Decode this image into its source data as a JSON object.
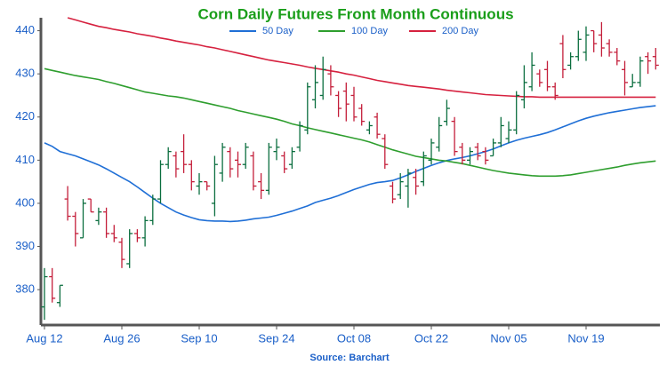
{
  "chart_data": {
    "type": "ohlc",
    "title": "Corn Daily Futures Front Month Continuous",
    "source": "Source: Barchart",
    "categories": [
      "Aug 12",
      null,
      null,
      null,
      null,
      null,
      null,
      null,
      null,
      null,
      "Aug 26",
      null,
      null,
      null,
      null,
      null,
      null,
      null,
      null,
      null,
      "Sep 10",
      null,
      null,
      null,
      null,
      null,
      null,
      null,
      null,
      null,
      "Sep 24",
      null,
      null,
      null,
      null,
      null,
      null,
      null,
      null,
      null,
      "Oct 08",
      null,
      null,
      null,
      null,
      null,
      null,
      null,
      null,
      null,
      "Oct 22",
      null,
      null,
      null,
      null,
      null,
      null,
      null,
      null,
      null,
      "Nov 05",
      null,
      null,
      null,
      null,
      null,
      null,
      null,
      null,
      null,
      "Nov 19",
      null,
      null,
      null,
      null,
      null,
      null,
      null,
      null,
      null
    ],
    "open": [
      376,
      383,
      377,
      401,
      397,
      392,
      401,
      396,
      398,
      393,
      391,
      386,
      393,
      392,
      396,
      401,
      409,
      411,
      412,
      409,
      404,
      405,
      400,
      407,
      412,
      410,
      409,
      411,
      405,
      403,
      412,
      411,
      409,
      413,
      417,
      424,
      425,
      430,
      425,
      426,
      425,
      422,
      417,
      420,
      415,
      404,
      402,
      404,
      406,
      405,
      410,
      413,
      419,
      419,
      413,
      410,
      413,
      412,
      411,
      414,
      415,
      417,
      424,
      427,
      430,
      431,
      427,
      437,
      432,
      434,
      435,
      440,
      439,
      437,
      435,
      431,
      427,
      428,
      434,
      434
    ],
    "high": [
      385,
      385,
      381,
      404,
      398,
      401,
      401,
      399,
      399,
      395,
      392,
      394,
      394,
      397,
      402,
      410,
      413,
      412,
      416,
      410,
      407,
      405,
      411,
      414,
      413,
      412,
      414,
      412,
      407,
      414,
      415,
      412,
      413,
      419,
      428,
      432,
      434,
      432,
      426,
      428,
      427,
      423,
      419,
      421,
      416,
      405,
      407,
      408,
      408,
      412,
      415,
      420,
      424,
      420,
      414,
      413,
      414,
      413,
      415,
      420,
      419,
      426,
      432,
      435,
      431,
      433,
      428,
      439,
      435,
      440,
      441,
      440,
      442,
      438,
      436,
      433,
      430,
      434,
      435,
      436
    ],
    "low": [
      373,
      377,
      376,
      396,
      390,
      392,
      398,
      395,
      392,
      391,
      385,
      385,
      391,
      390,
      395,
      400,
      408,
      406,
      407,
      403,
      402,
      403,
      397,
      405,
      406,
      406,
      408,
      403,
      401,
      402,
      410,
      407,
      408,
      412,
      416,
      422,
      424,
      425,
      420,
      419,
      419,
      418,
      416,
      415,
      408,
      400,
      401,
      399,
      402,
      404,
      409,
      412,
      418,
      411,
      409,
      409,
      410,
      409,
      411,
      413,
      414,
      416,
      422,
      426,
      427,
      426,
      424,
      429,
      431,
      433,
      433,
      435,
      434,
      434,
      432,
      425,
      427,
      427,
      430,
      431
    ],
    "close": [
      383,
      378,
      381,
      397,
      393,
      400,
      398,
      398,
      393,
      392,
      387,
      393,
      392,
      396,
      401,
      409,
      412,
      408,
      409,
      405,
      405,
      404,
      409,
      413,
      408,
      409,
      413,
      404,
      403,
      413,
      413,
      408,
      412,
      418,
      427,
      428,
      431,
      427,
      422,
      423,
      420,
      419,
      418,
      416,
      409,
      401,
      405,
      407,
      404,
      411,
      414,
      418,
      422,
      412,
      410,
      412,
      411,
      410,
      414,
      418,
      417,
      425,
      428,
      432,
      428,
      427,
      425,
      431,
      434,
      438,
      439,
      437,
      436,
      435,
      433,
      428,
      428,
      433,
      433,
      432
    ],
    "up_color": "#0b6e3f",
    "down_color": "#c41e3a",
    "series": [
      {
        "name": "50 Day",
        "color": "#1f6fd6",
        "values": [
          414,
          413.2,
          412,
          411.5,
          411,
          410.3,
          409.6,
          408.9,
          408,
          407,
          406,
          405,
          403.8,
          402.5,
          401.2,
          400,
          399,
          398,
          397.3,
          396.7,
          396.2,
          396,
          395.9,
          395.9,
          395.8,
          395.9,
          396.1,
          396.4,
          396.6,
          396.8,
          397.2,
          397.7,
          398.2,
          398.8,
          399.4,
          400.2,
          400.7,
          401.2,
          401.8,
          402.5,
          403.2,
          403.8,
          404.4,
          404.8,
          405,
          405.3,
          405.9,
          406.6,
          407.4,
          408.1,
          408.8,
          409.4,
          409.9,
          410.3,
          410.6,
          411,
          411.5,
          412,
          412.6,
          413.3,
          414,
          414.6,
          415.1,
          415.5,
          415.9,
          416.4,
          417,
          417.7,
          418.4,
          419.1,
          419.7,
          420.2,
          420.6,
          421,
          421.3,
          421.6,
          421.9,
          422.2,
          422.4,
          422.6
        ]
      },
      {
        "name": "100 Day",
        "color": "#2e9e2e",
        "values": [
          431.2,
          430.8,
          430.4,
          430,
          429.6,
          429.3,
          429,
          428.7,
          428.2,
          427.8,
          427.3,
          426.8,
          426.3,
          425.8,
          425.5,
          425.2,
          424.9,
          424.7,
          424.4,
          424,
          423.6,
          423.2,
          422.8,
          422.4,
          422,
          421.5,
          421.1,
          420.7,
          420.3,
          419.9,
          419.5,
          419,
          418.4,
          418,
          417.5,
          417.1,
          416.7,
          416.3,
          415.9,
          415.5,
          415.1,
          414.7,
          414.2,
          413.6,
          413,
          412.4,
          411.9,
          411.4,
          410.9,
          410.6,
          410.3,
          410,
          409.8,
          409.5,
          409.2,
          408.8,
          408.4,
          408,
          407.6,
          407.3,
          407,
          406.8,
          406.6,
          406.4,
          406.3,
          406.3,
          406.3,
          406.4,
          406.6,
          406.9,
          407.2,
          407.5,
          407.8,
          408.1,
          408.4,
          408.8,
          409.1,
          409.4,
          409.6,
          409.8
        ]
      },
      {
        "name": "200 Day",
        "color": "#d6213f",
        "values": [
          null,
          null,
          null,
          443,
          442.5,
          442,
          441.5,
          441,
          440.7,
          440.3,
          440,
          439.7,
          439.3,
          439,
          438.7,
          438.3,
          438,
          437.6,
          437.3,
          437,
          436.7,
          436.3,
          436,
          435.6,
          435.2,
          434.8,
          434.4,
          434,
          433.6,
          433.2,
          432.9,
          432.6,
          432.3,
          432,
          431.6,
          431.3,
          431,
          430.7,
          430.4,
          430,
          429.7,
          429.3,
          428.9,
          428.5,
          428.2,
          427.9,
          427.6,
          427.3,
          427.1,
          426.9,
          426.7,
          426.5,
          426.2,
          426,
          425.8,
          425.6,
          425.4,
          425.2,
          425.1,
          425,
          424.9,
          424.8,
          424.7,
          424.7,
          424.6,
          424.6,
          424.6,
          424.6,
          424.6,
          424.6,
          424.6,
          424.6,
          424.6,
          424.6,
          424.6,
          424.6,
          424.6,
          424.6,
          424.6,
          424.6
        ]
      }
    ],
    "ylim": [
      372,
      443
    ],
    "yticks": [
      380,
      390,
      400,
      410,
      420,
      430,
      440
    ],
    "grid": false
  }
}
